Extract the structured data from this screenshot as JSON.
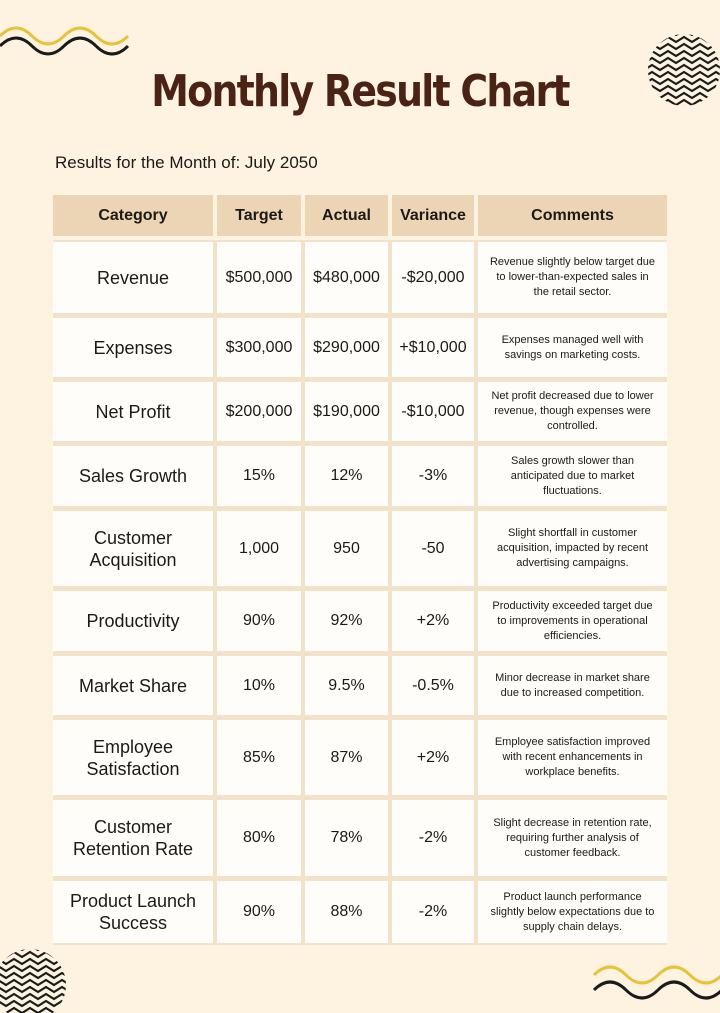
{
  "header": {
    "title": "Monthly Result Chart",
    "subtitle": "Results for the Month of: July 2050"
  },
  "table": {
    "columns": [
      "Category",
      "Target",
      "Actual",
      "Variance",
      "Comments"
    ],
    "rows": [
      [
        "Revenue",
        "$500,000",
        "$480,000",
        "-$20,000",
        "Revenue slightly below target due to lower-than-expected sales in the retail sector."
      ],
      [
        "Expenses",
        "$300,000",
        "$290,000",
        "+$10,000",
        "Expenses managed well with savings on marketing costs."
      ],
      [
        "Net Profit",
        "$200,000",
        "$190,000",
        "-$10,000",
        "Net profit decreased due to lower revenue, though expenses were controlled."
      ],
      [
        "Sales Growth",
        "15%",
        "12%",
        "-3%",
        "Sales growth slower than anticipated due to market fluctuations."
      ],
      [
        "Customer Acquisition",
        "1,000",
        "950",
        "-50",
        "Slight shortfall in customer acquisition, impacted by recent advertising campaigns."
      ],
      [
        "Productivity",
        "90%",
        "92%",
        "+2%",
        "Productivity exceeded target due to improvements in operational efficiencies."
      ],
      [
        "Market Share",
        "10%",
        "9.5%",
        "-0.5%",
        "Minor decrease in market share due to increased competition."
      ],
      [
        "Employee Satisfaction",
        "85%",
        "87%",
        "+2%",
        "Employee satisfaction improved with recent enhancements in workplace benefits."
      ],
      [
        "Customer Retention Rate",
        "80%",
        "78%",
        "-2%",
        "Slight decrease in retention rate, requiring further analysis of customer feedback."
      ],
      [
        "Product Launch Success",
        "90%",
        "88%",
        "-2%",
        "Product launch performance slightly below expectations due to supply chain delays."
      ]
    ]
  }
}
